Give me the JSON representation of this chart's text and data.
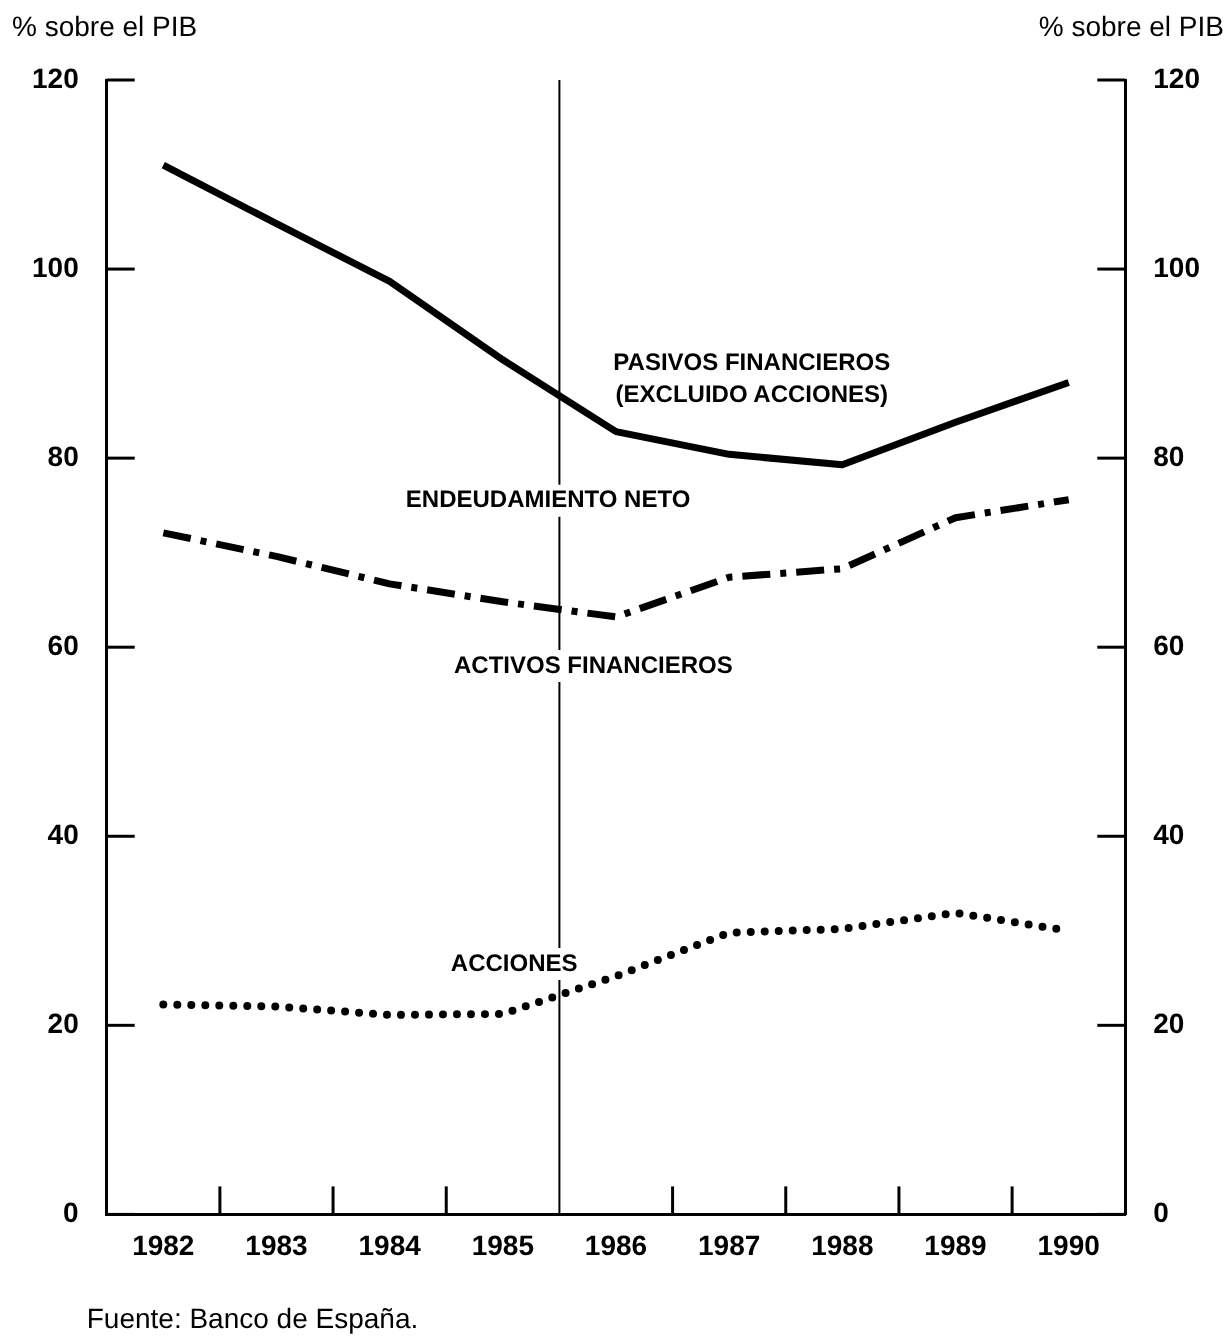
{
  "chart_data": {
    "type": "line",
    "ylabel": "% sobre el PIB",
    "y2label": "% sobre el PIB",
    "x": [
      1982,
      1983,
      1984,
      1985,
      1986,
      1987,
      1988,
      1989,
      1990
    ],
    "xlim": [
      1981.5,
      1990.5
    ],
    "xticks": [
      {
        "value": 1982,
        "label": "1982"
      },
      {
        "value": 1982.5,
        "label": null
      },
      {
        "value": 1983,
        "label": "1983"
      },
      {
        "value": 1983.5,
        "label": null
      },
      {
        "value": 1984,
        "label": "1984"
      },
      {
        "value": 1984.5,
        "label": null
      },
      {
        "value": 1985,
        "label": "1985"
      },
      {
        "value": 1986,
        "label": "1986"
      },
      {
        "value": 1986.5,
        "label": null
      },
      {
        "value": 1987,
        "label": "1987"
      },
      {
        "value": 1987.5,
        "label": null
      },
      {
        "value": 1988,
        "label": "1988"
      },
      {
        "value": 1988.5,
        "label": null
      },
      {
        "value": 1989,
        "label": "1989"
      },
      {
        "value": 1989.5,
        "label": null
      },
      {
        "value": 1990,
        "label": "1990"
      }
    ],
    "ylim": [
      0,
      120
    ],
    "yticks": [
      0,
      20,
      40,
      60,
      80,
      100,
      120
    ],
    "y2lim": [
      0,
      120
    ],
    "y2ticks": [
      0,
      20,
      40,
      60,
      80,
      100,
      120
    ],
    "series": [
      {
        "name": "PASIVOS FINANCIEROS (EXCLUIDO ACCIONES)",
        "color": "#000000",
        "line_style": "solid",
        "values": [
          111,
          104.8,
          98.7,
          90.4,
          82.8,
          80.4,
          79.3,
          83.8,
          88
        ]
      },
      {
        "name": "ACTIVOS FINANCIEROS",
        "color": "#000000",
        "line_style": "dashed",
        "values": [
          72.1,
          69.6,
          66.7,
          64.8,
          63.2,
          67.4,
          68.3,
          73.7,
          75.6
        ]
      },
      {
        "name": "ACCIONES",
        "color": "#000000",
        "line_style": "dotted",
        "values": [
          22.2,
          22,
          21.1,
          21.2,
          25.2,
          29.8,
          30.2,
          31.9,
          30
        ]
      }
    ],
    "ref_lines": [
      {
        "axis": "x",
        "value": 1985.5,
        "label": null,
        "color": "#000000"
      }
    ],
    "annotations": [
      "ENDEUDAMIENTO NETO",
      "Fuente: Banco de España."
    ],
    "grid": false,
    "legend": false,
    "marker": "none"
  }
}
